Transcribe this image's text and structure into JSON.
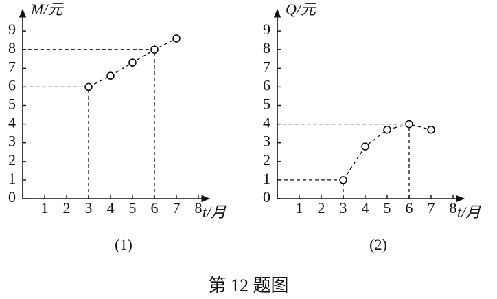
{
  "chart_data": [
    {
      "type": "line",
      "ylabel": "M/元",
      "xlabel": "t/月",
      "label": "(1)",
      "x": [
        3,
        4,
        5,
        6,
        7
      ],
      "values": [
        6,
        6.6,
        7.3,
        8,
        8.6
      ],
      "xlim": [
        0,
        8.5
      ],
      "ylim": [
        0,
        10
      ],
      "xticks": [
        1,
        2,
        3,
        4,
        5,
        6,
        7,
        8
      ],
      "yticks": [
        0,
        1,
        2,
        3,
        4,
        5,
        6,
        7,
        8,
        9
      ],
      "guide_x": [
        3,
        6
      ],
      "color": "#000000"
    },
    {
      "type": "line",
      "ylabel": "Q/元",
      "xlabel": "t/月",
      "label": "(2)",
      "x": [
        3,
        4,
        5,
        6,
        7
      ],
      "values": [
        1,
        2.8,
        3.7,
        4,
        3.7
      ],
      "xlim": [
        0,
        8.5
      ],
      "ylim": [
        0,
        10
      ],
      "xticks": [
        1,
        2,
        3,
        4,
        5,
        6,
        7,
        8
      ],
      "yticks": [
        0,
        1,
        2,
        3,
        4,
        5,
        6,
        7,
        8,
        9
      ],
      "guide_x": [
        3,
        6
      ],
      "color": "#000000"
    }
  ],
  "caption": "第 12 题图"
}
